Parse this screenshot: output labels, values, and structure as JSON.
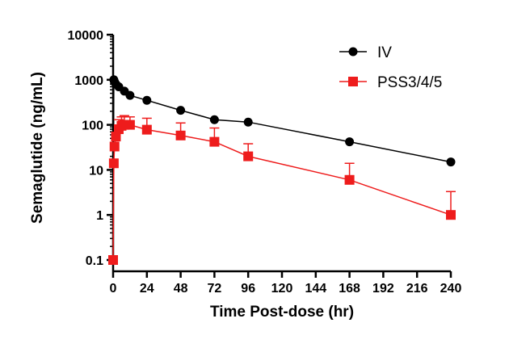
{
  "chart_data": {
    "type": "line",
    "scale": "log-y",
    "title": "",
    "xlabel": "Time Post-dose (hr)",
    "ylabel": "Semaglutide (ng/mL)",
    "xlim": [
      0,
      240
    ],
    "ylim": [
      0.1,
      10000
    ],
    "x_ticks": [
      0,
      24,
      48,
      72,
      96,
      120,
      144,
      168,
      192,
      216,
      240
    ],
    "x_tick_labels": [
      "0",
      "24",
      "48",
      "72",
      "96",
      "120",
      "144",
      "168",
      "192",
      "216",
      "240"
    ],
    "y_ticks": [
      0.1,
      1,
      10,
      100,
      1000,
      10000
    ],
    "y_tick_labels": [
      "0.1",
      "1",
      "10",
      "100",
      "1000",
      "10000"
    ],
    "legend_position": "top-right",
    "series": [
      {
        "name": "IV",
        "color": "#000000",
        "marker": "circle",
        "x": [
          0,
          0.5,
          1,
          2,
          4,
          8,
          12,
          24,
          48,
          72,
          96,
          168,
          240
        ],
        "y": [
          0.1,
          1000,
          900,
          800,
          700,
          560,
          450,
          350,
          210,
          130,
          115,
          42,
          15
        ],
        "error_up": []
      },
      {
        "name": "PSS3/4/5",
        "color": "#ee1c1c",
        "marker": "square",
        "x": [
          0,
          0.5,
          1,
          2,
          4,
          6,
          8,
          12,
          24,
          48,
          72,
          96,
          168,
          240
        ],
        "y": [
          0.1,
          14,
          33,
          55,
          80,
          95,
          100,
          100,
          78,
          58,
          42,
          20,
          6,
          1
        ],
        "error_up": [
          0,
          0,
          1.6,
          0,
          130,
          150,
          160,
          150,
          140,
          110,
          85,
          38,
          14,
          3.3
        ]
      }
    ]
  }
}
